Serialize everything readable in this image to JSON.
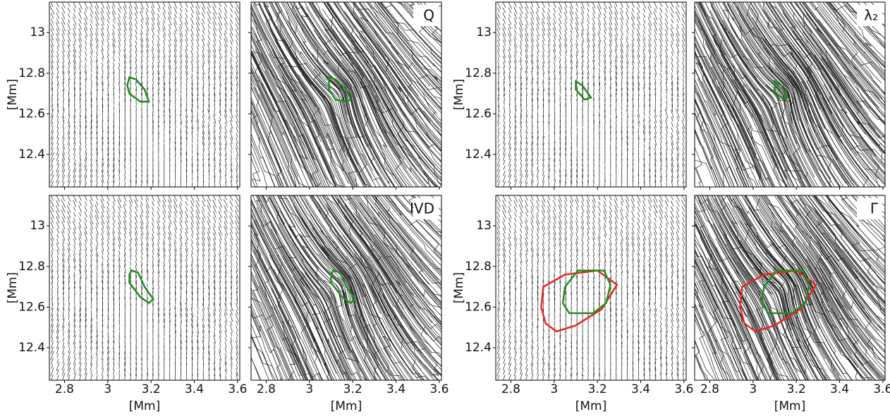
{
  "chart_data": {
    "type": "streamline",
    "xlabel": "[Mm]",
    "ylabel": "[Mm]",
    "xlim": [
      2.73,
      3.61
    ],
    "xticks": [
      2.8,
      3.0,
      3.2,
      3.4,
      3.6
    ],
    "ylim": [
      12.24,
      13.15
    ],
    "yticks": [
      12.4,
      12.6,
      12.8,
      13.0
    ],
    "panels": [
      {
        "field": "vector",
        "contours": [
          {
            "color": "#228b22",
            "x": [
              3.1,
              3.13,
              3.17,
              3.19,
              3.15,
              3.1,
              3.09
            ],
            "y": [
              12.78,
              12.77,
              12.72,
              12.66,
              12.66,
              12.7,
              12.74
            ]
          }
        ]
      },
      {
        "field": "spiral",
        "label": "Q",
        "contours": [
          {
            "color": "#228b22",
            "x": [
              3.09,
              3.12,
              3.17,
              3.19,
              3.17,
              3.12,
              3.09
            ],
            "y": [
              12.78,
              12.77,
              12.72,
              12.67,
              12.66,
              12.67,
              12.72
            ]
          }
        ]
      },
      {
        "field": "vector",
        "contours": [
          {
            "color": "#228b22",
            "x": [
              3.1,
              3.13,
              3.17,
              3.14,
              3.1
            ],
            "y": [
              12.76,
              12.74,
              12.68,
              12.67,
              12.72
            ]
          }
        ]
      },
      {
        "field": "spiral",
        "label": "λ₂",
        "contours": [
          {
            "color": "#228b22",
            "x": [
              3.1,
              3.13,
              3.16,
              3.14,
              3.1
            ],
            "y": [
              12.76,
              12.74,
              12.68,
              12.67,
              12.71
            ]
          }
        ]
      },
      {
        "field": "vector",
        "contours": [
          {
            "color": "#228b22",
            "x": [
              3.11,
              3.14,
              3.17,
              3.21,
              3.19,
              3.15,
              3.1,
              3.1
            ],
            "y": [
              12.78,
              12.77,
              12.7,
              12.64,
              12.62,
              12.65,
              12.72,
              12.76
            ]
          }
        ]
      },
      {
        "field": "spiral",
        "label": "IVD",
        "contours": [
          {
            "color": "#228b22",
            "x": [
              3.11,
              3.14,
              3.17,
              3.21,
              3.19,
              3.15,
              3.1,
              3.1
            ],
            "y": [
              12.78,
              12.77,
              12.7,
              12.64,
              12.62,
              12.65,
              12.72,
              12.76
            ]
          }
        ]
      },
      {
        "field": "vector",
        "contours": [
          {
            "color": "#e8251d",
            "x": [
              2.95,
              3.05,
              3.2,
              3.29,
              3.22,
              3.1,
              3.01,
              2.96,
              2.94
            ],
            "y": [
              12.7,
              12.76,
              12.78,
              12.71,
              12.59,
              12.51,
              12.48,
              12.52,
              12.6
            ]
          },
          {
            "color": "#228b22",
            "x": [
              3.05,
              3.11,
              3.23,
              3.26,
              3.24,
              3.18,
              3.07,
              3.04
            ],
            "y": [
              12.7,
              12.78,
              12.78,
              12.71,
              12.62,
              12.57,
              12.57,
              12.62
            ]
          }
        ]
      },
      {
        "field": "spiral",
        "label": "Γ",
        "contours": [
          {
            "color": "#e8251d",
            "x": [
              2.95,
              3.05,
              3.2,
              3.29,
              3.22,
              3.1,
              3.01,
              2.96,
              2.94
            ],
            "y": [
              12.7,
              12.76,
              12.78,
              12.71,
              12.59,
              12.51,
              12.48,
              12.52,
              12.6
            ]
          },
          {
            "color": "#228b22",
            "x": [
              3.05,
              3.11,
              3.23,
              3.26,
              3.24,
              3.18,
              3.07,
              3.04
            ],
            "y": [
              12.7,
              12.78,
              12.78,
              12.71,
              12.62,
              12.57,
              12.57,
              12.62
            ]
          }
        ]
      }
    ]
  }
}
